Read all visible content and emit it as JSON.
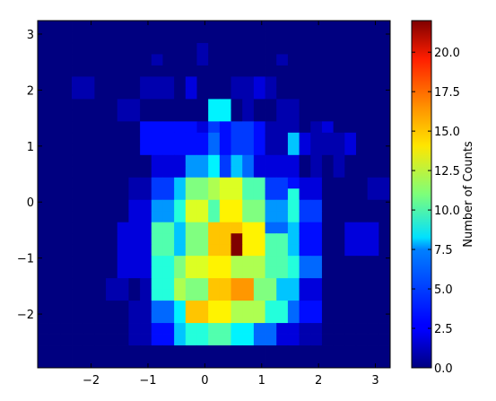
{
  "chart_data": {
    "type": "heatmap",
    "title": "",
    "xlabel": "",
    "ylabel": "",
    "colorbar_label": "Number of Counts",
    "colormap": "jet",
    "x_edges": [
      -2.94,
      -2.74,
      -2.54,
      -2.34,
      -2.14,
      -1.94,
      -1.74,
      -1.54,
      -1.34,
      -1.14,
      -0.94,
      -0.74,
      -0.54,
      -0.34,
      -0.14,
      0.06,
      0.26,
      0.46,
      0.66,
      0.86,
      1.06,
      1.26,
      1.46,
      1.66,
      1.86,
      2.06,
      2.26,
      2.46,
      2.66,
      2.86,
      3.06,
      3.26
    ],
    "y_edges": [
      -2.96,
      -2.76,
      -2.56,
      -2.36,
      -2.16,
      -1.96,
      -1.76,
      -1.56,
      -1.36,
      -1.16,
      -0.96,
      -0.76,
      -0.56,
      -0.36,
      -0.16,
      0.04,
      0.24,
      0.44,
      0.64,
      0.84,
      1.04,
      1.24,
      1.44,
      1.64,
      1.84,
      2.04,
      2.24,
      2.44,
      2.64,
      2.84,
      3.04,
      3.24
    ],
    "xlim": [
      -2.94,
      3.26
    ],
    "ylim": [
      -2.96,
      3.24
    ],
    "x_ticks": [
      -2,
      -1,
      0,
      1,
      2,
      3
    ],
    "y_ticks": [
      -2,
      -1,
      0,
      1,
      2,
      3
    ],
    "colorbar_range": [
      0,
      22
    ],
    "colorbar_ticks": [
      "0.0",
      "2.5",
      "5.0",
      "7.5",
      "10.0",
      "12.5",
      "15.0",
      "17.5",
      "20.0"
    ],
    "counts_rows_top_to_bottom": [
      [
        0,
        0,
        0,
        0,
        0,
        0,
        0,
        0,
        0,
        0,
        0,
        0,
        0,
        0,
        0,
        0,
        0,
        0,
        0,
        0,
        0,
        0,
        0,
        0,
        0,
        0,
        0,
        0,
        0,
        0,
        0
      ],
      [
        0,
        0,
        0,
        0,
        0,
        0,
        0,
        0,
        0,
        0,
        0,
        0,
        0,
        0,
        0,
        0,
        0,
        0,
        0,
        0,
        0,
        0,
        0,
        0,
        0,
        0,
        0,
        0,
        0,
        0,
        0
      ],
      [
        0,
        0,
        0,
        0,
        0,
        0,
        0,
        0,
        0,
        0,
        0,
        0,
        0,
        0,
        1,
        0,
        0,
        0,
        0,
        0,
        0,
        0,
        0,
        0,
        0,
        0,
        0,
        0,
        0,
        0,
        0
      ],
      [
        0,
        0,
        0,
        0,
        0,
        0,
        0,
        0,
        0,
        0,
        1,
        0,
        0,
        0,
        1,
        0,
        0,
        0,
        0,
        0,
        0,
        1,
        0,
        0,
        0,
        0,
        0,
        0,
        0,
        0,
        0
      ],
      [
        0,
        0,
        0,
        0,
        0,
        0,
        0,
        0,
        0,
        0,
        0,
        0,
        0,
        0,
        0,
        0,
        0,
        0,
        0,
        0,
        0,
        0,
        0,
        0,
        0,
        0,
        0,
        0,
        0,
        0,
        0
      ],
      [
        0,
        0,
        0,
        1,
        1,
        0,
        0,
        0,
        0,
        1,
        1,
        1,
        0,
        2,
        0,
        0,
        0,
        1,
        1,
        2,
        1,
        0,
        0,
        0,
        0,
        0,
        0,
        0,
        0,
        0,
        0
      ],
      [
        0,
        0,
        0,
        1,
        1,
        0,
        0,
        0,
        0,
        1,
        1,
        1,
        0,
        2,
        0,
        0,
        0,
        1,
        1,
        2,
        1,
        0,
        0,
        0,
        0,
        0,
        0,
        0,
        0,
        0,
        0
      ],
      [
        0,
        0,
        0,
        0,
        0,
        0,
        0,
        1,
        1,
        0,
        0,
        0,
        0,
        0,
        0,
        8,
        8,
        0,
        1,
        0,
        0,
        1,
        1,
        0,
        0,
        0,
        0,
        0,
        0,
        0,
        0
      ],
      [
        0,
        0,
        0,
        0,
        0,
        0,
        0,
        1,
        1,
        0,
        0,
        0,
        0,
        0,
        0,
        8,
        8,
        0,
        1,
        0,
        0,
        1,
        1,
        0,
        0,
        0,
        0,
        0,
        0,
        0,
        0
      ],
      [
        0,
        0,
        0,
        0,
        0,
        0,
        0,
        0,
        0,
        3,
        3,
        3,
        3,
        3,
        2,
        4,
        3,
        4,
        4,
        3,
        1,
        1,
        1,
        0,
        1,
        2,
        0,
        0,
        0,
        0,
        0
      ],
      [
        0,
        0,
        0,
        0,
        0,
        0,
        0,
        0,
        0,
        3,
        3,
        3,
        3,
        3,
        3,
        5,
        3,
        4,
        4,
        3,
        1,
        1,
        7,
        2,
        1,
        1,
        1,
        2,
        0,
        0,
        0
      ],
      [
        0,
        0,
        0,
        0,
        0,
        0,
        0,
        0,
        0,
        3,
        3,
        3,
        3,
        3,
        3,
        5,
        3,
        4,
        4,
        3,
        1,
        1,
        7,
        2,
        1,
        1,
        1,
        2,
        0,
        0,
        0
      ],
      [
        0,
        0,
        0,
        0,
        0,
        0,
        0,
        0,
        0,
        0,
        2,
        2,
        2,
        6,
        6,
        8,
        4,
        7,
        5,
        2,
        2,
        2,
        2,
        0,
        1,
        0,
        1,
        0,
        0,
        0,
        0
      ],
      [
        0,
        0,
        0,
        0,
        0,
        0,
        0,
        0,
        0,
        0,
        2,
        2,
        2,
        6,
        6,
        8,
        4,
        7,
        5,
        2,
        2,
        2,
        2,
        0,
        1,
        0,
        1,
        0,
        0,
        0,
        0
      ],
      [
        0,
        0,
        0,
        0,
        0,
        0,
        0,
        0,
        1,
        1,
        4,
        4,
        7,
        11,
        11,
        12,
        13,
        13,
        10,
        10,
        4,
        4,
        3,
        2,
        2,
        0,
        0,
        0,
        0,
        1,
        1
      ],
      [
        0,
        0,
        0,
        0,
        0,
        0,
        0,
        0,
        1,
        1,
        4,
        4,
        7,
        11,
        11,
        12,
        13,
        13,
        10,
        10,
        4,
        4,
        9,
        2,
        2,
        0,
        0,
        0,
        0,
        1,
        1
      ],
      [
        0,
        0,
        0,
        0,
        0,
        0,
        0,
        0,
        2,
        2,
        6,
        6,
        9,
        13,
        13,
        10,
        14,
        14,
        11,
        11,
        6,
        6,
        9,
        4,
        4,
        0,
        0,
        0,
        0,
        0,
        0
      ],
      [
        0,
        0,
        0,
        0,
        0,
        0,
        0,
        0,
        2,
        2,
        6,
        6,
        9,
        13,
        13,
        10,
        14,
        14,
        11,
        11,
        6,
        6,
        9,
        4,
        4,
        0,
        0,
        0,
        0,
        0,
        0
      ],
      [
        0,
        0,
        0,
        0,
        0,
        0,
        0,
        2,
        2,
        2,
        10,
        10,
        7,
        11,
        11,
        15,
        15,
        15,
        14,
        14,
        5,
        5,
        7,
        3,
        3,
        0,
        0,
        2,
        2,
        2,
        0
      ],
      [
        0,
        0,
        0,
        0,
        0,
        0,
        0,
        2,
        2,
        2,
        10,
        10,
        7,
        11,
        11,
        15,
        15,
        22,
        14,
        14,
        10,
        10,
        7,
        3,
        3,
        0,
        0,
        2,
        2,
        2,
        0
      ],
      [
        0,
        0,
        0,
        0,
        0,
        0,
        0,
        2,
        2,
        2,
        10,
        10,
        7,
        11,
        11,
        15,
        15,
        22,
        14,
        14,
        10,
        10,
        7,
        3,
        3,
        0,
        0,
        2,
        2,
        2,
        0
      ],
      [
        0,
        0,
        0,
        0,
        0,
        0,
        0,
        2,
        2,
        2,
        9,
        9,
        11,
        13,
        13,
        14,
        14,
        12,
        12,
        12,
        10,
        10,
        9,
        5,
        5,
        0,
        0,
        0,
        0,
        0,
        0
      ],
      [
        0,
        0,
        0,
        0,
        0,
        0,
        0,
        2,
        2,
        2,
        9,
        9,
        11,
        13,
        13,
        14,
        14,
        12,
        12,
        12,
        10,
        10,
        9,
        5,
        5,
        0,
        0,
        0,
        0,
        0,
        0
      ],
      [
        0,
        0,
        0,
        0,
        0,
        0,
        1,
        1,
        0,
        1,
        9,
        9,
        12,
        11,
        11,
        15,
        15,
        16,
        16,
        11,
        11,
        7,
        7,
        2,
        2,
        0,
        0,
        0,
        0,
        0,
        0
      ],
      [
        0,
        0,
        0,
        0,
        0,
        0,
        1,
        1,
        0,
        1,
        9,
        9,
        12,
        11,
        11,
        15,
        15,
        16,
        16,
        11,
        11,
        7,
        7,
        2,
        2,
        0,
        0,
        0,
        0,
        0,
        0
      ],
      [
        0,
        0,
        0,
        0,
        0,
        0,
        0,
        0,
        1,
        1,
        5,
        5,
        8,
        15,
        15,
        14,
        14,
        12,
        12,
        12,
        9,
        9,
        5,
        3,
        3,
        0,
        0,
        0,
        0,
        0,
        0
      ],
      [
        0,
        0,
        0,
        0,
        0,
        0,
        0,
        0,
        1,
        1,
        5,
        5,
        8,
        15,
        15,
        14,
        14,
        12,
        12,
        12,
        9,
        9,
        5,
        3,
        3,
        0,
        0,
        0,
        0,
        0,
        0
      ],
      [
        0,
        0,
        0,
        0,
        0,
        0,
        0,
        0,
        1,
        1,
        3,
        3,
        7,
        9,
        9,
        10,
        10,
        8,
        8,
        5,
        5,
        2,
        2,
        1,
        1,
        0,
        0,
        0,
        0,
        0,
        0
      ],
      [
        0,
        0,
        0,
        0,
        0,
        0,
        0,
        0,
        1,
        1,
        3,
        3,
        7,
        9,
        9,
        10,
        10,
        8,
        8,
        5,
        5,
        2,
        2,
        1,
        1,
        0,
        0,
        0,
        0,
        0,
        0
      ],
      [
        0,
        0,
        0,
        0,
        0,
        0,
        0,
        0,
        0,
        0,
        0,
        0,
        0,
        0,
        0,
        0,
        0,
        0,
        0,
        0,
        0,
        0,
        0,
        0,
        0,
        0,
        0,
        0,
        0,
        0,
        0
      ],
      [
        0,
        0,
        0,
        0,
        0,
        0,
        0,
        0,
        0,
        0,
        0,
        0,
        0,
        0,
        0,
        0,
        0,
        0,
        0,
        0,
        0,
        0,
        0,
        0,
        0,
        0,
        0,
        0,
        0,
        0,
        0
      ]
    ],
    "grid": false
  }
}
